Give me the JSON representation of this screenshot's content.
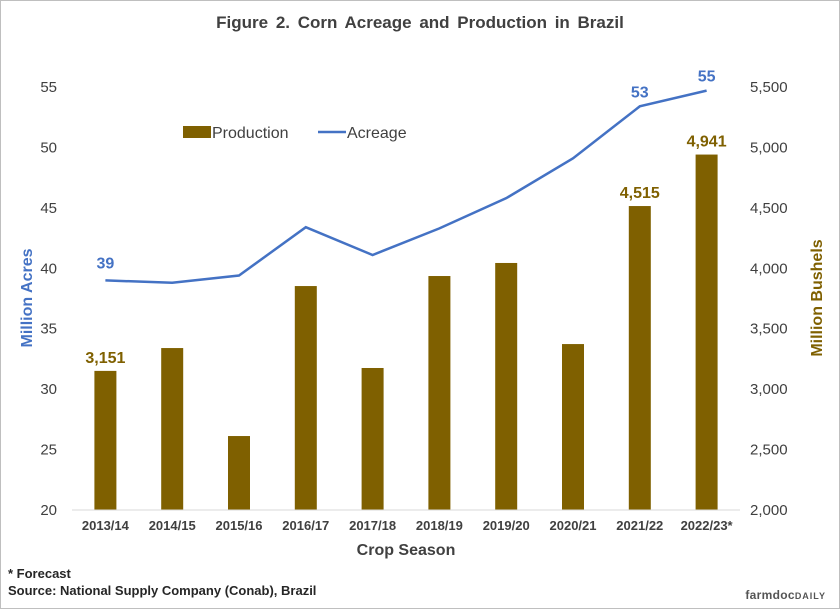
{
  "chart_data": {
    "type": "bar+line",
    "title": "Figure 2. Corn Acreage and Production in Brazil",
    "xlabel": "Crop Season",
    "ylabel_left": "Million Acres",
    "ylabel_right": "Million Bushels",
    "categories": [
      "2013/14",
      "2014/15",
      "2015/16",
      "2016/17",
      "2017/18",
      "2018/19",
      "2019/20",
      "2020/21",
      "2021/22",
      "2022/23*"
    ],
    "ylim_left": [
      20,
      55
    ],
    "yticks_left": [
      "20",
      "25",
      "30",
      "35",
      "40",
      "45",
      "50",
      "55"
    ],
    "ylim_right": [
      2000,
      5500
    ],
    "yticks_right": [
      "2,000",
      "2,500",
      "3,000",
      "3,500",
      "4,000",
      "4,500",
      "5,000",
      "5,500"
    ],
    "grid": false,
    "legend_position": "top-left inside",
    "series": [
      {
        "name": "Production",
        "type": "bar",
        "axis": "right",
        "color": "#7f6000",
        "values": [
          3151,
          3340,
          2612,
          3853,
          3175,
          3936,
          4044,
          3373,
          4515,
          4941
        ],
        "data_labels": [
          "3,151",
          null,
          null,
          null,
          null,
          null,
          null,
          null,
          "4,515",
          "4,941"
        ]
      },
      {
        "name": "Acreage",
        "type": "line",
        "axis": "left",
        "color": "#4472c4",
        "values": [
          39.0,
          38.8,
          39.4,
          43.4,
          41.1,
          43.3,
          45.8,
          49.1,
          53.4,
          54.7
        ],
        "data_labels": [
          "39",
          null,
          null,
          null,
          null,
          null,
          null,
          null,
          "53",
          "55"
        ]
      }
    ]
  },
  "footnotes": {
    "forecast": "* Forecast",
    "source": "Source: National Supply Company (Conab), Brazil"
  },
  "logo": {
    "main": "farmdoc",
    "sub": "DAILY"
  }
}
